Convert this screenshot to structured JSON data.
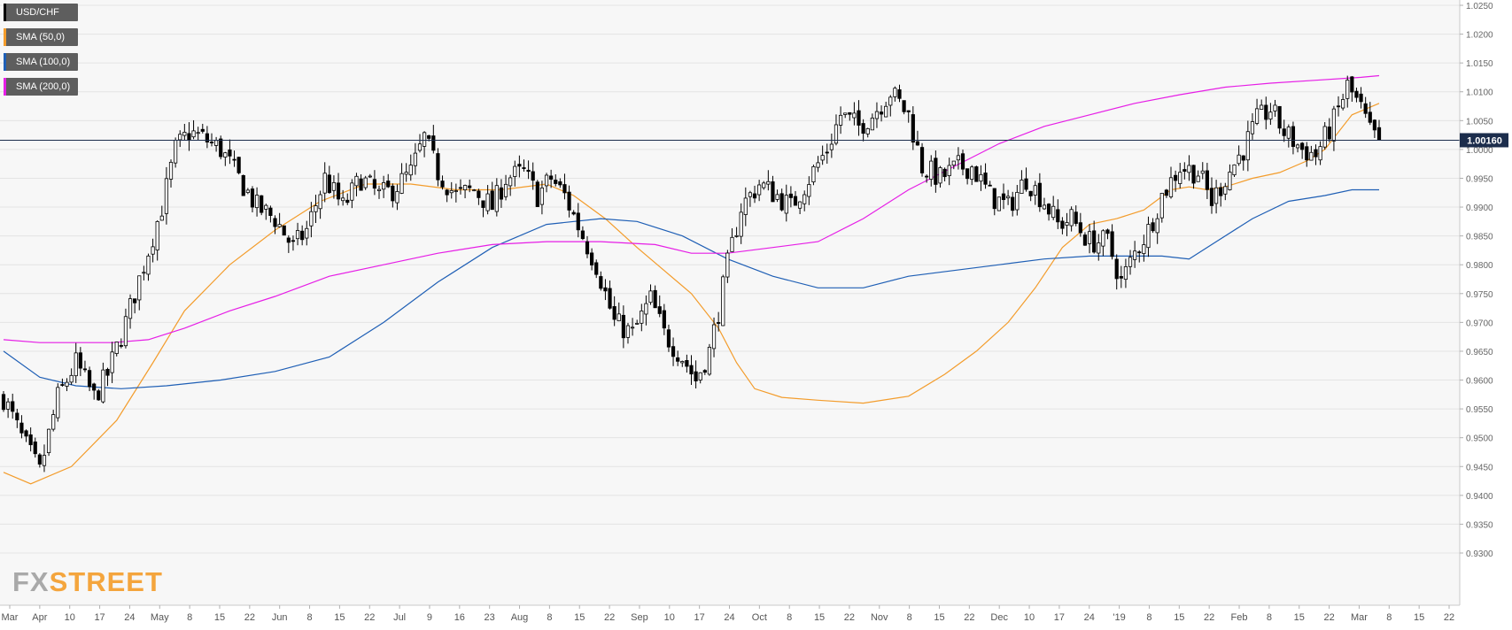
{
  "legend": [
    {
      "label": "USD/CHF",
      "color": "#000000"
    },
    {
      "label": "SMA (50,0)",
      "color": "#f39c2b"
    },
    {
      "label": "SMA (100,0)",
      "color": "#1f5fb5"
    },
    {
      "label": "SMA (200,0)",
      "color": "#e61ee6"
    }
  ],
  "logo": {
    "fx": "FX",
    "street": "STREET"
  },
  "price_label": "1.00160",
  "chart_data": {
    "type": "candlestick",
    "symbol": "USD/CHF",
    "ylim": [
      0.93,
      1.025
    ],
    "y_ticks": [
      "0.9300",
      "0.9350",
      "0.9400",
      "0.9450",
      "0.9500",
      "0.9550",
      "0.9600",
      "0.9650",
      "0.9700",
      "0.9750",
      "0.9800",
      "0.9850",
      "0.9900",
      "0.9950",
      "1.0000",
      "1.0050",
      "1.0100",
      "1.0150",
      "1.0200",
      "1.0250"
    ],
    "x_ticks": [
      "Mar",
      "Apr",
      "10",
      "17",
      "24",
      "May",
      "8",
      "15",
      "22",
      "Jun",
      "8",
      "15",
      "22",
      "Jul",
      "9",
      "16",
      "23",
      "Aug",
      "8",
      "15",
      "22",
      "Sep",
      "10",
      "17",
      "24",
      "Oct",
      "8",
      "15",
      "22",
      "Nov",
      "8",
      "15",
      "22",
      "Dec",
      "10",
      "17",
      "24",
      "'19",
      "8",
      "15",
      "22",
      "Feb",
      "8",
      "15",
      "22",
      "Mar",
      "8",
      "15",
      "22"
    ],
    "last_price": 1.0016,
    "close_path": [
      [
        0,
        0.957
      ],
      [
        4,
        0.95
      ],
      [
        8,
        0.944
      ],
      [
        12,
        0.957
      ],
      [
        16,
        0.963
      ],
      [
        20,
        0.957
      ],
      [
        23,
        0.961
      ],
      [
        27,
        0.97
      ],
      [
        31,
        0.98
      ],
      [
        35,
        0.99
      ],
      [
        38,
        1.0
      ],
      [
        41,
        1.003
      ],
      [
        44,
        1.002
      ],
      [
        48,
        1.0
      ],
      [
        52,
        0.995
      ],
      [
        56,
        0.99
      ],
      [
        60,
        0.988
      ],
      [
        64,
        0.983
      ],
      [
        67,
        0.986
      ],
      [
        71,
        0.995
      ],
      [
        75,
        0.99
      ],
      [
        79,
        0.995
      ],
      [
        83,
        0.992
      ],
      [
        86,
        0.993
      ],
      [
        90,
        0.996
      ],
      [
        93,
        1.002
      ],
      [
        96,
        0.996
      ],
      [
        100,
        0.992
      ],
      [
        104,
        0.993
      ],
      [
        108,
        0.99
      ],
      [
        111,
        0.995
      ],
      [
        115,
        0.996
      ],
      [
        118,
        0.992
      ],
      [
        121,
        0.995
      ],
      [
        124,
        0.992
      ],
      [
        128,
        0.985
      ],
      [
        131,
        0.98
      ],
      [
        135,
        0.97
      ],
      [
        139,
        0.968
      ],
      [
        143,
        0.974
      ],
      [
        146,
        0.968
      ],
      [
        150,
        0.964
      ],
      [
        153,
        0.96
      ],
      [
        156,
        0.965
      ],
      [
        158,
        0.972
      ],
      [
        160,
        0.98
      ],
      [
        163,
        0.99
      ],
      [
        167,
        0.994
      ],
      [
        171,
        0.992
      ],
      [
        174,
        0.99
      ],
      [
        178,
        0.995
      ],
      [
        182,
        1.0
      ],
      [
        185,
        1.006
      ],
      [
        189,
        1.004
      ],
      [
        192,
        1.006
      ],
      [
        196,
        1.01
      ],
      [
        200,
        1.006
      ],
      [
        203,
        0.997
      ],
      [
        207,
        0.995
      ],
      [
        211,
        0.997
      ],
      [
        214,
        0.997
      ],
      [
        218,
        0.992
      ],
      [
        222,
        0.99
      ],
      [
        226,
        0.995
      ],
      [
        230,
        0.991
      ],
      [
        233,
        0.987
      ],
      [
        236,
        0.988
      ],
      [
        240,
        0.984
      ],
      [
        244,
        0.984
      ],
      [
        247,
        0.977
      ],
      [
        250,
        0.982
      ],
      [
        253,
        0.986
      ],
      [
        256,
        0.992
      ],
      [
        260,
        0.997
      ],
      [
        264,
        0.996
      ],
      [
        267,
        0.991
      ],
      [
        270,
        0.995
      ],
      [
        274,
        1.0
      ],
      [
        277,
        1.005
      ],
      [
        280,
        1.007
      ],
      [
        283,
        1.003
      ],
      [
        287,
        1.0
      ],
      [
        290,
        0.999
      ],
      [
        294,
        1.005
      ],
      [
        297,
        1.011
      ],
      [
        300,
        1.007
      ],
      [
        302,
        1.003
      ],
      [
        304,
        1.0016
      ]
    ],
    "series": [
      {
        "name": "SMA (50,0)",
        "color": "#f39c2b",
        "points": [
          [
            0,
            0.944
          ],
          [
            6,
            0.942
          ],
          [
            15,
            0.945
          ],
          [
            25,
            0.953
          ],
          [
            33,
            0.963
          ],
          [
            40,
            0.972
          ],
          [
            50,
            0.98
          ],
          [
            60,
            0.986
          ],
          [
            70,
            0.991
          ],
          [
            80,
            0.994
          ],
          [
            90,
            0.994
          ],
          [
            100,
            0.993
          ],
          [
            110,
            0.993
          ],
          [
            120,
            0.994
          ],
          [
            126,
            0.992
          ],
          [
            133,
            0.988
          ],
          [
            140,
            0.983
          ],
          [
            146,
            0.979
          ],
          [
            152,
            0.975
          ],
          [
            158,
            0.969
          ],
          [
            162,
            0.963
          ],
          [
            166,
            0.9585
          ],
          [
            172,
            0.957
          ],
          [
            180,
            0.9565
          ],
          [
            190,
            0.956
          ],
          [
            200,
            0.9572
          ],
          [
            208,
            0.961
          ],
          [
            215,
            0.965
          ],
          [
            222,
            0.97
          ],
          [
            228,
            0.976
          ],
          [
            234,
            0.983
          ],
          [
            240,
            0.987
          ],
          [
            246,
            0.988
          ],
          [
            252,
            0.9895
          ],
          [
            258,
            0.993
          ],
          [
            262,
            0.9935
          ],
          [
            266,
            0.993
          ],
          [
            270,
            0.9935
          ],
          [
            276,
            0.995
          ],
          [
            282,
            0.996
          ],
          [
            288,
            0.998
          ],
          [
            292,
            1.0
          ],
          [
            298,
            1.006
          ],
          [
            304,
            1.008
          ]
        ]
      },
      {
        "name": "SMA (100,0)",
        "color": "#1f5fb5",
        "points": [
          [
            0,
            0.965
          ],
          [
            8,
            0.9605
          ],
          [
            16,
            0.959
          ],
          [
            26,
            0.9585
          ],
          [
            36,
            0.959
          ],
          [
            48,
            0.96
          ],
          [
            60,
            0.9615
          ],
          [
            72,
            0.964
          ],
          [
            84,
            0.97
          ],
          [
            96,
            0.977
          ],
          [
            108,
            0.983
          ],
          [
            120,
            0.987
          ],
          [
            132,
            0.988
          ],
          [
            140,
            0.9875
          ],
          [
            150,
            0.985
          ],
          [
            160,
            0.981
          ],
          [
            170,
            0.978
          ],
          [
            180,
            0.976
          ],
          [
            190,
            0.976
          ],
          [
            200,
            0.978
          ],
          [
            210,
            0.979
          ],
          [
            220,
            0.98
          ],
          [
            230,
            0.981
          ],
          [
            240,
            0.9815
          ],
          [
            250,
            0.9815
          ],
          [
            256,
            0.9815
          ],
          [
            262,
            0.981
          ],
          [
            268,
            0.984
          ],
          [
            276,
            0.988
          ],
          [
            284,
            0.991
          ],
          [
            292,
            0.992
          ],
          [
            298,
            0.993
          ],
          [
            304,
            0.993
          ]
        ]
      },
      {
        "name": "SMA (200,0)",
        "color": "#e61ee6",
        "points": [
          [
            0,
            0.967
          ],
          [
            8,
            0.9665
          ],
          [
            16,
            0.9665
          ],
          [
            24,
            0.9665
          ],
          [
            32,
            0.967
          ],
          [
            40,
            0.969
          ],
          [
            50,
            0.972
          ],
          [
            60,
            0.9745
          ],
          [
            72,
            0.978
          ],
          [
            84,
            0.98
          ],
          [
            96,
            0.982
          ],
          [
            108,
            0.9835
          ],
          [
            120,
            0.984
          ],
          [
            132,
            0.984
          ],
          [
            144,
            0.9835
          ],
          [
            152,
            0.982
          ],
          [
            160,
            0.982
          ],
          [
            170,
            0.983
          ],
          [
            180,
            0.984
          ],
          [
            190,
            0.988
          ],
          [
            200,
            0.993
          ],
          [
            210,
            0.997
          ],
          [
            220,
            1.001
          ],
          [
            230,
            1.004
          ],
          [
            240,
            1.006
          ],
          [
            250,
            1.008
          ],
          [
            260,
            1.0095
          ],
          [
            270,
            1.0108
          ],
          [
            280,
            1.0115
          ],
          [
            290,
            1.012
          ],
          [
            300,
            1.0125
          ],
          [
            304,
            1.0128
          ]
        ]
      }
    ]
  }
}
